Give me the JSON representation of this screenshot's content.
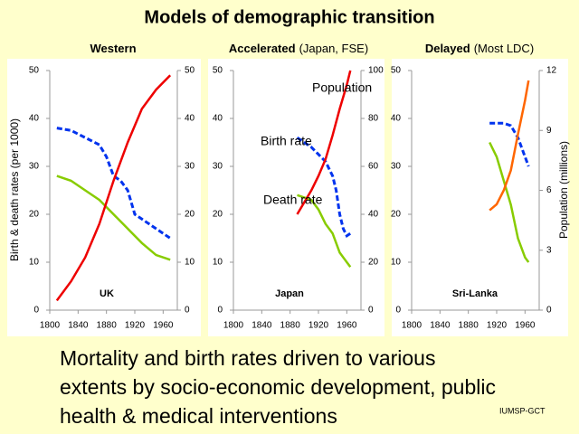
{
  "title": "Models of demographic transition",
  "caption": [
    "Mortality and birth rates driven to various",
    "extents by socio-economic development, public",
    "health & medical interventions"
  ],
  "footer": "IUMSP-GCT",
  "chart_data": [
    {
      "type": "line",
      "title": "Western",
      "label": "UK",
      "ylabel": "Birth & death rates (per 1000)",
      "xlim": [
        1800,
        1980
      ],
      "xticks": [
        1800,
        1840,
        1880,
        1920,
        1960
      ],
      "ylim": [
        0,
        50
      ],
      "yticks": [
        0,
        10,
        20,
        30,
        40,
        50
      ],
      "y2lim": [
        0,
        50
      ],
      "y2ticks": [
        0,
        10,
        20,
        30,
        40,
        50
      ],
      "series": [
        {
          "color": "#0033ee",
          "dash": true,
          "x": [
            1810,
            1830,
            1850,
            1870,
            1880,
            1890,
            1900,
            1910,
            1920,
            1930,
            1950,
            1970
          ],
          "values": [
            38,
            37.5,
            36,
            34.5,
            32,
            28,
            27,
            25,
            20,
            19,
            17,
            15
          ]
        },
        {
          "color": "#88cc00",
          "x": [
            1810,
            1830,
            1850,
            1870,
            1890,
            1910,
            1930,
            1950,
            1970
          ],
          "values": [
            28,
            27,
            25,
            23,
            20,
            17,
            14,
            11.5,
            10.5
          ]
        },
        {
          "color": "#ee0000",
          "axis": "y2",
          "x": [
            1810,
            1830,
            1850,
            1870,
            1890,
            1910,
            1930,
            1950,
            1970
          ],
          "values": [
            2,
            6,
            11,
            18,
            27,
            35,
            42,
            46,
            49
          ]
        }
      ]
    },
    {
      "type": "line",
      "title": "Accelerated",
      "subtitle": "(Japan, FSE)",
      "label": "Japan",
      "annotations": [
        "Population",
        "Birth rate",
        "Death rate"
      ],
      "xlim": [
        1800,
        1980
      ],
      "xticks": [
        1800,
        1840,
        1880,
        1920,
        1960
      ],
      "ylim": [
        0,
        50
      ],
      "yticks": [
        0,
        10,
        20,
        30,
        40,
        50
      ],
      "y2lim": [
        0,
        100
      ],
      "y2ticks": [
        0,
        20,
        40,
        60,
        80,
        100
      ],
      "series": [
        {
          "color": "#0033ee",
          "dash": true,
          "x": [
            1890,
            1910,
            1930,
            1940,
            1945,
            1950,
            1955,
            1960,
            1965
          ],
          "values": [
            36,
            34,
            31,
            28,
            25,
            20,
            17,
            15.5,
            16
          ]
        },
        {
          "color": "#88cc00",
          "x": [
            1890,
            1910,
            1920,
            1930,
            1940,
            1950,
            1960,
            1965
          ],
          "values": [
            24,
            23,
            21,
            18,
            16,
            12,
            10,
            9
          ]
        },
        {
          "color": "#ee0000",
          "axis": "y2",
          "x": [
            1890,
            1910,
            1920,
            1930,
            1940,
            1950,
            1960,
            1965
          ],
          "values": [
            40,
            50,
            56,
            63,
            73,
            84,
            94,
            100
          ]
        }
      ]
    },
    {
      "type": "line",
      "title": "Delayed",
      "subtitle": "(Most LDC)",
      "label": "Sri-Lanka",
      "y2label": "Population (millions)",
      "xlim": [
        1800,
        1980
      ],
      "xticks": [
        1800,
        1840,
        1880,
        1920,
        1960
      ],
      "ylim": [
        0,
        50
      ],
      "yticks": [
        0,
        10,
        20,
        30,
        40,
        50
      ],
      "y2lim": [
        0,
        12
      ],
      "y2ticks": [
        0,
        3,
        6,
        9,
        12
      ],
      "series": [
        {
          "color": "#0033ee",
          "dash": true,
          "x": [
            1910,
            1930,
            1940,
            1950,
            1960,
            1965
          ],
          "values": [
            39,
            39,
            38.5,
            36,
            32,
            30
          ]
        },
        {
          "color": "#88cc00",
          "x": [
            1910,
            1920,
            1930,
            1940,
            1950,
            1960,
            1965
          ],
          "values": [
            35,
            32,
            27,
            22,
            15,
            11,
            10
          ]
        },
        {
          "color": "#ff6600",
          "axis": "y2",
          "x": [
            1910,
            1920,
            1930,
            1940,
            1950,
            1960,
            1965
          ],
          "values": [
            5,
            5.3,
            6,
            7,
            8.8,
            10.5,
            11.5
          ]
        }
      ]
    }
  ]
}
